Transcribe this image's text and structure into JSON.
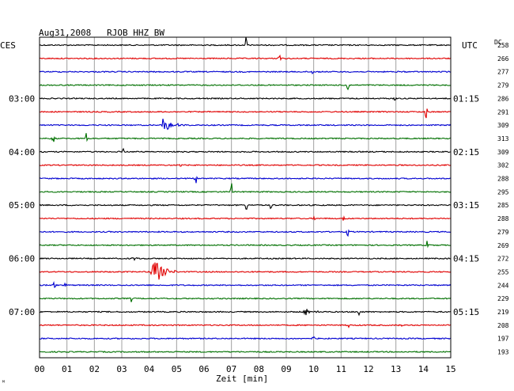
{
  "header": {
    "title": "Aug31,2008   RJOB HHZ BW",
    "left_tz": "CES",
    "right_tz": "UTC",
    "dc_label": "DC"
  },
  "footer": {
    "xlabel": "Zeit [min]",
    "corner_mark": "ᴹ"
  },
  "colors": {
    "cycle": [
      "#000000",
      "#e00000",
      "#0000d0",
      "#007000"
    ],
    "grid": "#a0a0a0"
  },
  "chart_data": {
    "type": "line",
    "title": "Aug31,2008   RJOB HHZ BW",
    "xlabel": "Zeit [min]",
    "xlim": [
      0,
      15
    ],
    "x_ticks": [
      "00",
      "01",
      "02",
      "03",
      "04",
      "05",
      "06",
      "07",
      "08",
      "09",
      "10",
      "11",
      "12",
      "13",
      "14",
      "15"
    ],
    "traces_per_hour": 4,
    "left_hour_labels": [
      "03:00",
      "04:00",
      "05:00",
      "06:00",
      "07:00"
    ],
    "right_hour_labels": [
      "01:15",
      "02:15",
      "03:15",
      "04:15",
      "05:15"
    ],
    "dc_offsets": [
      "258",
      "266",
      "277",
      "279",
      "286",
      "291",
      "309",
      "313",
      "309",
      "302",
      "288",
      "295",
      "285",
      "288",
      "279",
      "269",
      "272",
      "255",
      "244",
      "229",
      "219",
      "208",
      "197",
      "193"
    ],
    "events": [
      {
        "trace": 0,
        "minute": 7.55,
        "amp": 18,
        "width": 0.05
      },
      {
        "trace": 1,
        "minute": 8.75,
        "amp": 9,
        "width": 0.05
      },
      {
        "trace": 2,
        "minute": 9.95,
        "amp": 3,
        "width": 0.1
      },
      {
        "trace": 2,
        "minute": 13.0,
        "amp": 3,
        "width": 0.15
      },
      {
        "trace": 3,
        "minute": 11.25,
        "amp": 12,
        "width": 0.05
      },
      {
        "trace": 4,
        "minute": 12.95,
        "amp": 4,
        "width": 0.1
      },
      {
        "trace": 5,
        "minute": 14.1,
        "amp": 10,
        "width": 0.05
      },
      {
        "trace": 6,
        "minute": 4.5,
        "amp": 10,
        "width": 0.9
      },
      {
        "trace": 7,
        "minute": 0.5,
        "amp": 10,
        "width": 0.05
      },
      {
        "trace": 7,
        "minute": 1.7,
        "amp": 8,
        "width": 0.05
      },
      {
        "trace": 8,
        "minute": 3.05,
        "amp": 8,
        "width": 0.05
      },
      {
        "trace": 9,
        "minute": 5.15,
        "amp": 3,
        "width": 0.05
      },
      {
        "trace": 10,
        "minute": 5.7,
        "amp": 8,
        "width": 0.05
      },
      {
        "trace": 11,
        "minute": 7.0,
        "amp": 14,
        "width": 0.05
      },
      {
        "trace": 12,
        "minute": 7.55,
        "amp": 10,
        "width": 0.1
      },
      {
        "trace": 12,
        "minute": 8.45,
        "amp": 8,
        "width": 0.05
      },
      {
        "trace": 13,
        "minute": 10.0,
        "amp": 4,
        "width": 0.05
      },
      {
        "trace": 13,
        "minute": 11.1,
        "amp": 4,
        "width": 0.05
      },
      {
        "trace": 14,
        "minute": 11.25,
        "amp": 10,
        "width": 0.05
      },
      {
        "trace": 15,
        "minute": 14.15,
        "amp": 7,
        "width": 0.05
      },
      {
        "trace": 16,
        "minute": 3.4,
        "amp": 3,
        "width": 0.4
      },
      {
        "trace": 17,
        "minute": 4.1,
        "amp": 22,
        "width": 0.9
      },
      {
        "trace": 18,
        "minute": 0.55,
        "amp": 9,
        "width": 0.05
      },
      {
        "trace": 18,
        "minute": 0.95,
        "amp": 3,
        "width": 0.05
      },
      {
        "trace": 19,
        "minute": 3.35,
        "amp": 5,
        "width": 0.05
      },
      {
        "trace": 20,
        "minute": 11.65,
        "amp": 8,
        "width": 0.08
      },
      {
        "trace": 20,
        "minute": 9.65,
        "amp": 5,
        "width": 0.7
      },
      {
        "trace": 21,
        "minute": 11.25,
        "amp": 5,
        "width": 0.05
      },
      {
        "trace": 21,
        "minute": 13.2,
        "amp": 3,
        "width": 0.3
      },
      {
        "trace": 22,
        "minute": 10.0,
        "amp": 6,
        "width": 0.05
      }
    ]
  }
}
